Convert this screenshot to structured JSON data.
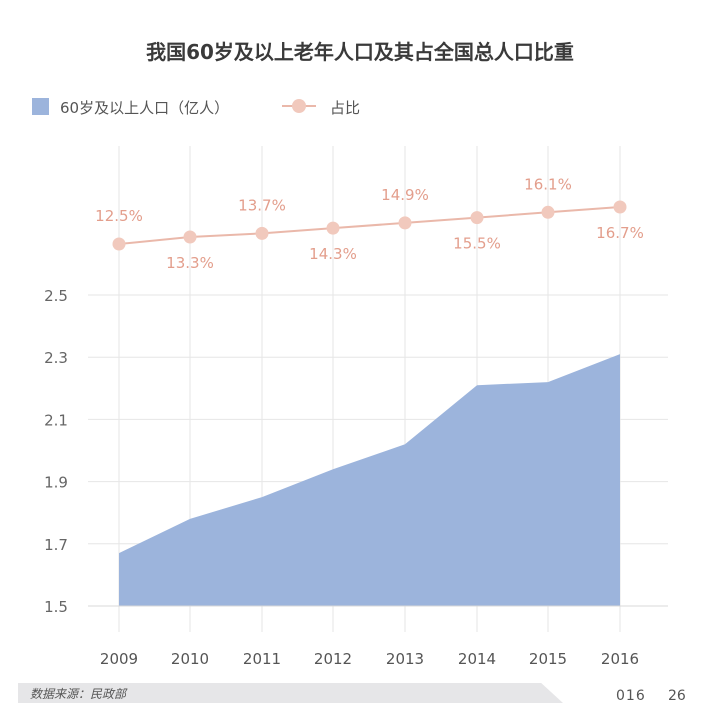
{
  "chart_data": {
    "type": "area",
    "title": "我国60岁及以上老年人口及其占全国总人口比重",
    "categories": [
      "2009",
      "2010",
      "2011",
      "2012",
      "2013",
      "2014",
      "2015",
      "2016"
    ],
    "series": [
      {
        "name": "60岁及以上人口（亿人）",
        "type": "area",
        "color": "#9cb4dc",
        "values": [
          1.67,
          1.78,
          1.85,
          1.94,
          2.02,
          2.21,
          2.22,
          2.31
        ]
      },
      {
        "name": "占比",
        "type": "line",
        "color": "#eab8aa",
        "values": [
          12.5,
          13.3,
          13.7,
          14.3,
          14.9,
          15.5,
          16.1,
          16.7
        ],
        "labels": [
          "12.5%",
          "13.3%",
          "13.7%",
          "14.3%",
          "14.9%",
          "15.5%",
          "16.1%",
          "16.7%"
        ]
      }
    ],
    "yticks": [
      "1.5",
      "1.7",
      "1.9",
      "2.1",
      "2.3",
      "2.5"
    ],
    "ylim": [
      1.5,
      2.5
    ],
    "grid": true,
    "legend_position": "top-left",
    "label_color": "#e39e8c"
  },
  "source_note": "数据来源：民政部",
  "page_edge_text": "016",
  "page_number": "26"
}
